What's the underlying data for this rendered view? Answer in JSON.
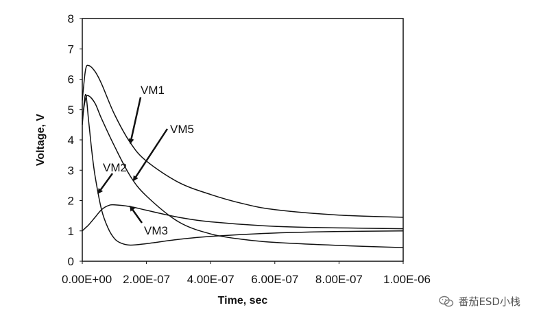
{
  "chart_data": {
    "type": "line",
    "title": "",
    "xlabel": "Time, sec",
    "ylabel": "Voltage, V",
    "xlim": [
      0,
      1e-06
    ],
    "ylim": [
      0,
      8
    ],
    "xtick_labels": [
      "0.00E+00",
      "2.00E-07",
      "4.00E-07",
      "6.00E-07",
      "8.00E-07",
      "1.00E-06"
    ],
    "ytick_labels": [
      "0",
      "1",
      "2",
      "3",
      "4",
      "5",
      "6",
      "7",
      "8"
    ],
    "grid": false,
    "series": [
      {
        "name": "VM1",
        "x": [
          0,
          1e-08,
          2e-08,
          4e-08,
          6e-08,
          1e-07,
          1.5e-07,
          2e-07,
          3e-07,
          4e-07,
          5e-07,
          6e-07,
          8e-07,
          1e-06
        ],
        "y": [
          5.3,
          6.3,
          6.45,
          6.25,
          5.85,
          4.85,
          3.9,
          3.3,
          2.6,
          2.2,
          1.9,
          1.7,
          1.52,
          1.45
        ]
      },
      {
        "name": "VM5",
        "x": [
          0,
          1e-08,
          2e-08,
          4e-08,
          6e-08,
          1e-07,
          1.5e-07,
          2e-07,
          3e-07,
          4e-07,
          5e-07,
          6e-07,
          8e-07,
          1e-06
        ],
        "y": [
          4.7,
          5.35,
          5.45,
          5.2,
          4.7,
          3.8,
          2.8,
          2.15,
          1.3,
          0.9,
          0.72,
          0.62,
          0.52,
          0.45
        ]
      },
      {
        "name": "VM2",
        "x": [
          0,
          1e-08,
          2e-08,
          3e-08,
          4e-08,
          6e-08,
          8e-08,
          1e-07,
          1.2e-07,
          1.5e-07,
          2e-07,
          3e-07,
          4e-07,
          6e-07,
          8e-07,
          1e-06
        ],
        "y": [
          4.5,
          5.5,
          4.6,
          3.6,
          2.8,
          1.7,
          1.1,
          0.75,
          0.6,
          0.53,
          0.58,
          0.72,
          0.82,
          0.93,
          0.98,
          1.0
        ]
      },
      {
        "name": "VM3",
        "x": [
          0,
          1e-08,
          2e-08,
          4e-08,
          6e-08,
          8e-08,
          1e-07,
          1.5e-07,
          2e-07,
          3e-07,
          4e-07,
          6e-07,
          8e-07,
          1e-06
        ],
        "y": [
          1.0,
          1.1,
          1.2,
          1.45,
          1.7,
          1.83,
          1.86,
          1.8,
          1.68,
          1.45,
          1.3,
          1.15,
          1.1,
          1.07
        ]
      }
    ],
    "annotations": [
      {
        "text": "VM1",
        "target_series": "VM1"
      },
      {
        "text": "VM5",
        "target_series": "VM5"
      },
      {
        "text": "VM2",
        "target_series": "VM2"
      },
      {
        "text": "VM3",
        "target_series": "VM3"
      }
    ]
  },
  "watermark": {
    "text": "番茄ESD小栈",
    "icon": "wechat-icon"
  }
}
